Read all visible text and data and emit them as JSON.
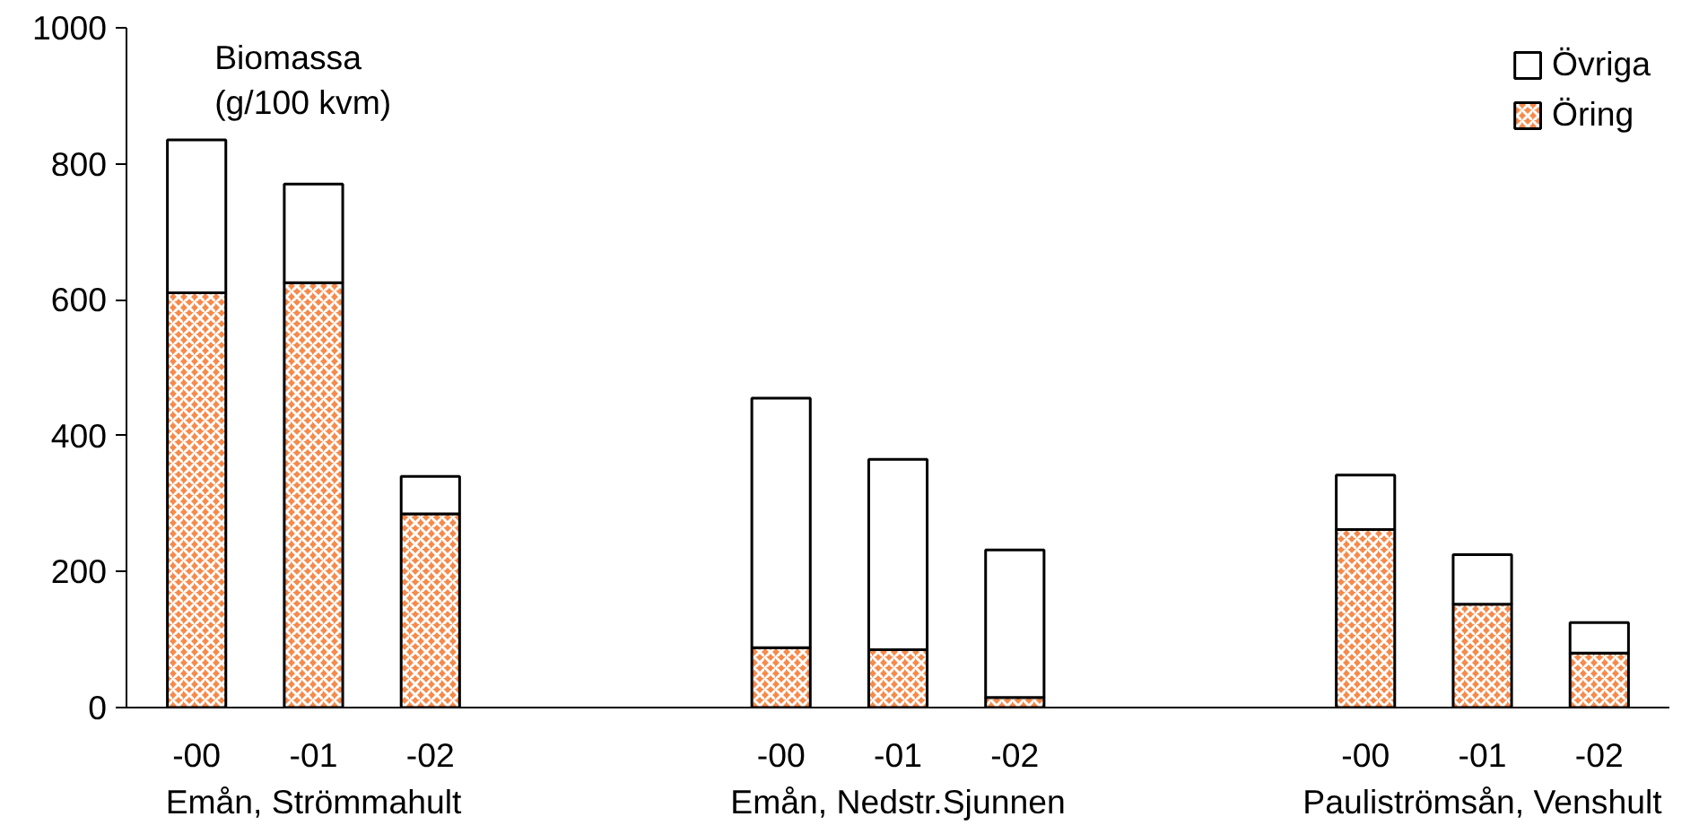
{
  "chart_data": {
    "type": "bar",
    "stacked": true,
    "ylabel": "Biomassa (g/100 kvm)",
    "categories": [
      "-00",
      "-01",
      "-02",
      null,
      null,
      "-00",
      "-01",
      "-02",
      null,
      null,
      "-00",
      "-01",
      "-02"
    ],
    "series": [
      {
        "name": "Öring",
        "color": "#f58a4b",
        "values": [
          610,
          625,
          285,
          null,
          null,
          88,
          85,
          15,
          null,
          null,
          262,
          152,
          80
        ]
      },
      {
        "name": "Övriga",
        "color": "#ffffff",
        "values": [
          225,
          145,
          55,
          null,
          null,
          367,
          280,
          217,
          null,
          null,
          80,
          73,
          45
        ]
      }
    ],
    "ylim": [
      0,
      1000
    ],
    "yticks": [
      0,
      200,
      400,
      600,
      800,
      1000
    ],
    "grid": false,
    "legend": "top right",
    "annotations": [
      "Emån, Strömmahult",
      "Emån, Nedstr.Sjunnen",
      "Pauliströmsån, Venshult"
    ]
  }
}
